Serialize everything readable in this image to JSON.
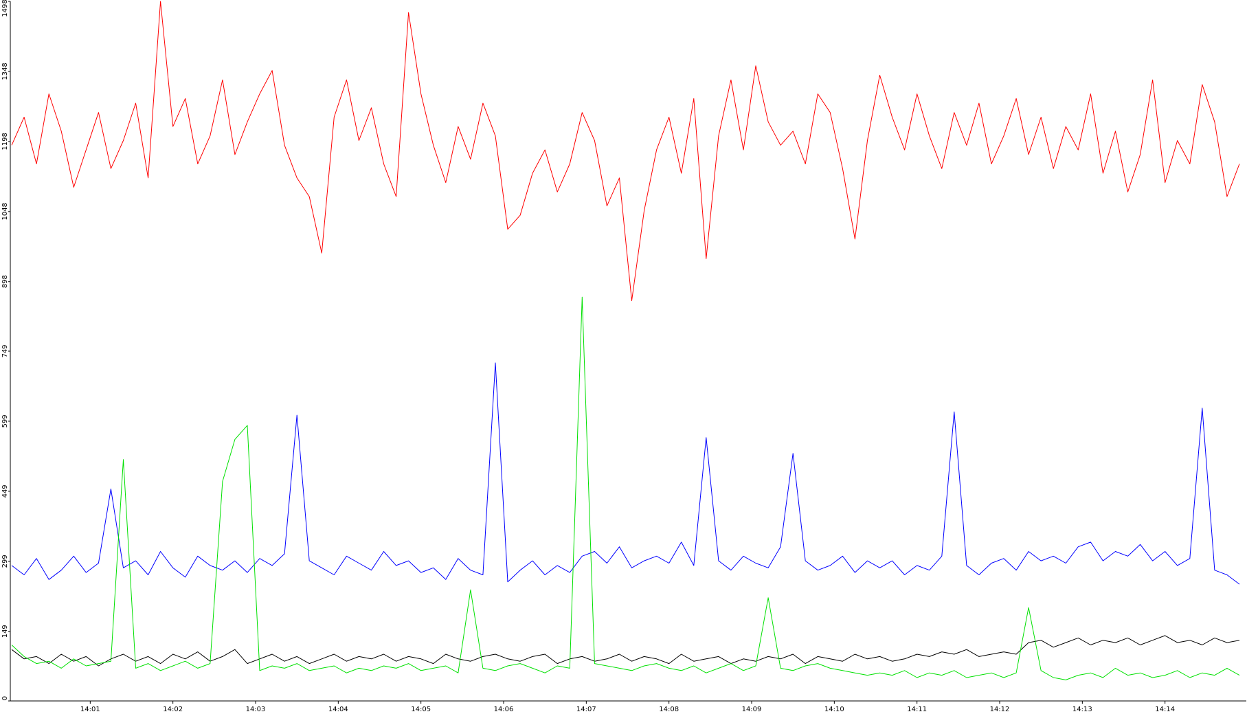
{
  "chart_data": {
    "type": "line",
    "x": [
      "14:00:03",
      "14:00:12",
      "14:00:21",
      "14:00:30",
      "14:00:39",
      "14:00:48",
      "14:00:57",
      "14:01:06",
      "14:01:15",
      "14:01:24",
      "14:01:33",
      "14:01:42",
      "14:01:51",
      "14:02:00",
      "14:02:09",
      "14:02:18",
      "14:02:27",
      "14:02:36",
      "14:02:45",
      "14:02:54",
      "14:03:03",
      "14:03:12",
      "14:03:21",
      "14:03:30",
      "14:03:39",
      "14:03:48",
      "14:03:57",
      "14:04:06",
      "14:04:15",
      "14:04:24",
      "14:04:33",
      "14:04:42",
      "14:04:51",
      "14:05:00",
      "14:05:09",
      "14:05:18",
      "14:05:27",
      "14:05:36",
      "14:05:45",
      "14:05:54",
      "14:06:03",
      "14:06:12",
      "14:06:21",
      "14:06:30",
      "14:06:39",
      "14:06:48",
      "14:06:57",
      "14:07:06",
      "14:07:15",
      "14:07:24",
      "14:07:33",
      "14:07:42",
      "14:07:51",
      "14:08:00",
      "14:08:09",
      "14:08:18",
      "14:08:27",
      "14:08:36",
      "14:08:45",
      "14:08:54",
      "14:09:03",
      "14:09:12",
      "14:09:21",
      "14:09:30",
      "14:09:39",
      "14:09:48",
      "14:09:57",
      "14:10:06",
      "14:10:15",
      "14:10:24",
      "14:10:33",
      "14:10:42",
      "14:10:51",
      "14:11:00",
      "14:11:09",
      "14:11:18",
      "14:11:27",
      "14:11:36",
      "14:11:45",
      "14:11:54",
      "14:12:03",
      "14:12:12",
      "14:12:21",
      "14:12:30",
      "14:12:39",
      "14:12:48",
      "14:12:57",
      "14:13:06",
      "14:13:15",
      "14:13:24",
      "14:13:33",
      "14:13:42",
      "14:13:51",
      "14:14:00",
      "14:14:09",
      "14:14:18",
      "14:14:27",
      "14:14:36",
      "14:14:45",
      "14:14:54"
    ],
    "series": [
      {
        "color": "#ff0000",
        "values": [
          1190,
          1250,
          1150,
          1300,
          1220,
          1100,
          1180,
          1260,
          1140,
          1200,
          1280,
          1120,
          1498,
          1230,
          1290,
          1150,
          1210,
          1330,
          1170,
          1240,
          1300,
          1350,
          1190,
          1120,
          1080,
          959,
          1250,
          1330,
          1200,
          1270,
          1150,
          1080,
          1474,
          1300,
          1190,
          1110,
          1230,
          1160,
          1280,
          1210,
          1010,
          1040,
          1130,
          1180,
          1090,
          1150,
          1260,
          1200,
          1060,
          1120,
          857,
          1050,
          1180,
          1250,
          1130,
          1290,
          947,
          1210,
          1330,
          1180,
          1360,
          1240,
          1190,
          1220,
          1150,
          1300,
          1260,
          1140,
          989,
          1200,
          1340,
          1250,
          1180,
          1300,
          1210,
          1140,
          1260,
          1190,
          1280,
          1150,
          1210,
          1290,
          1170,
          1250,
          1140,
          1230,
          1180,
          1300,
          1130,
          1220,
          1090,
          1170,
          1330,
          1110,
          1200,
          1150,
          1320,
          1240,
          1080,
          1150
        ]
      },
      {
        "color": "#0000ff",
        "values": [
          290,
          270,
          305,
          260,
          280,
          310,
          275,
          295,
          454,
          285,
          300,
          270,
          320,
          285,
          265,
          310,
          290,
          280,
          300,
          275,
          305,
          290,
          315,
          612,
          300,
          285,
          270,
          310,
          295,
          280,
          320,
          290,
          300,
          275,
          285,
          260,
          305,
          280,
          270,
          724,
          255,
          280,
          300,
          270,
          290,
          275,
          310,
          320,
          295,
          330,
          285,
          300,
          310,
          295,
          340,
          290,
          564,
          300,
          280,
          310,
          295,
          285,
          330,
          530,
          300,
          280,
          290,
          310,
          275,
          300,
          285,
          300,
          270,
          290,
          280,
          310,
          619,
          290,
          270,
          295,
          305,
          280,
          320,
          300,
          310,
          295,
          330,
          340,
          300,
          320,
          310,
          335,
          300,
          320,
          290,
          305,
          627,
          280,
          270,
          250
        ]
      },
      {
        "color": "#000000",
        "values": [
          110,
          90,
          95,
          80,
          100,
          85,
          95,
          75,
          90,
          100,
          85,
          95,
          80,
          100,
          90,
          105,
          85,
          95,
          110,
          80,
          90,
          100,
          85,
          95,
          80,
          90,
          100,
          85,
          95,
          90,
          100,
          85,
          95,
          90,
          80,
          100,
          90,
          85,
          95,
          100,
          90,
          85,
          95,
          100,
          80,
          90,
          95,
          85,
          90,
          100,
          85,
          95,
          90,
          80,
          100,
          85,
          90,
          95,
          80,
          90,
          85,
          95,
          90,
          100,
          80,
          95,
          90,
          85,
          100,
          90,
          95,
          85,
          90,
          100,
          95,
          105,
          100,
          110,
          95,
          100,
          105,
          100,
          125,
          130,
          115,
          125,
          135,
          120,
          130,
          125,
          135,
          120,
          130,
          140,
          125,
          130,
          120,
          135,
          125,
          130
        ]
      },
      {
        "color": "#00e000",
        "values": [
          120,
          95,
          80,
          85,
          70,
          90,
          75,
          80,
          85,
          517,
          70,
          80,
          65,
          75,
          85,
          70,
          80,
          470,
          560,
          590,
          65,
          75,
          70,
          80,
          65,
          70,
          75,
          60,
          70,
          65,
          75,
          70,
          80,
          65,
          70,
          75,
          60,
          238,
          70,
          65,
          75,
          80,
          70,
          60,
          75,
          70,
          865,
          80,
          75,
          70,
          65,
          75,
          80,
          70,
          65,
          75,
          60,
          70,
          80,
          65,
          75,
          221,
          70,
          65,
          75,
          80,
          70,
          65,
          60,
          55,
          60,
          55,
          65,
          50,
          60,
          55,
          65,
          50,
          55,
          60,
          50,
          60,
          200,
          65,
          50,
          45,
          55,
          60,
          50,
          70,
          55,
          60,
          50,
          55,
          65,
          50,
          60,
          55,
          70,
          55
        ]
      }
    ],
    "xlim": [
      "14:00:02",
      "14:14:59"
    ],
    "xticks": [
      "14:01",
      "14:02",
      "14:03",
      "14:04",
      "14:05",
      "14:06",
      "14:07",
      "14:08",
      "14:09",
      "14:10",
      "14:11",
      "14:12",
      "14:13",
      "14:14"
    ],
    "ylim": [
      0,
      1498
    ],
    "yticks": [
      0,
      149,
      299,
      449,
      599,
      749,
      898,
      1048,
      1198,
      1348,
      1498
    ],
    "grid": false
  }
}
